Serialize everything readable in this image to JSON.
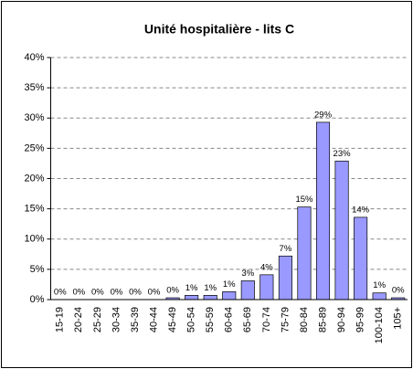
{
  "chart_data": {
    "type": "bar",
    "title": "Unité hospitalière - lits C",
    "categories": [
      "15-19",
      "20-24",
      "25-29",
      "30-34",
      "35-39",
      "40-44",
      "45-49",
      "50-54",
      "55-59",
      "60-64",
      "65-69",
      "70-74",
      "75-79",
      "80-84",
      "85-89",
      "90-94",
      "95-99",
      "100-104",
      "105+"
    ],
    "values": [
      0,
      0,
      0,
      0,
      0,
      0,
      0.3,
      0.7,
      0.7,
      1.3,
      3.1,
      4.1,
      7.2,
      15.3,
      29.3,
      22.9,
      13.6,
      1.1,
      0.3
    ],
    "value_labels": [
      "0%",
      "0%",
      "0%",
      "0%",
      "0%",
      "0%",
      "0%",
      "1%",
      "1%",
      "1%",
      "3%",
      "4%",
      "7%",
      "15%",
      "29%",
      "23%",
      "14%",
      "1%",
      "0%"
    ],
    "color": "#9999ff",
    "ylim": [
      0,
      40
    ],
    "yticks": [
      {
        "value": 0,
        "label": "0%"
      },
      {
        "value": 5,
        "label": "5%"
      },
      {
        "value": 10,
        "label": "10%"
      },
      {
        "value": 15,
        "label": "15%"
      },
      {
        "value": 20,
        "label": "20%"
      },
      {
        "value": 25,
        "label": "25%"
      },
      {
        "value": 30,
        "label": "30%"
      },
      {
        "value": 35,
        "label": "35%"
      },
      {
        "value": 40,
        "label": "40%"
      }
    ],
    "grid": true
  }
}
